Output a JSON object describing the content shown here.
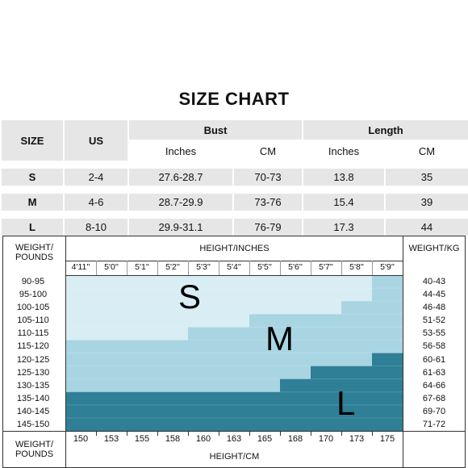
{
  "title": "SIZE CHART",
  "size_table": {
    "headers": {
      "size": "SIZE",
      "us": "US",
      "bust": "Bust",
      "length": "Length"
    },
    "subheaders": [
      "Inches",
      "CM",
      "Inches",
      "CM"
    ],
    "rows": [
      {
        "size": "S",
        "us": "2-4",
        "bust_in": "27.6-28.7",
        "bust_cm": "70-73",
        "len_in": "13.8",
        "len_cm": "35"
      },
      {
        "size": "M",
        "us": "4-6",
        "bust_in": "28.7-29.9",
        "bust_cm": "73-76",
        "len_in": "15.4",
        "len_cm": "39"
      },
      {
        "size": "L",
        "us": "8-10",
        "bust_in": "29.9-31.1",
        "bust_cm": "76-79",
        "len_in": "17.3",
        "len_cm": "44"
      }
    ]
  },
  "grid": {
    "weight_pounds_label": "WEIGHT/ POUNDS",
    "height_inches_label": "HEIGHT/INCHES",
    "weight_kg_label": "WEIGHT/KG",
    "height_cm_label": "HEIGHT/CM",
    "heights_in": [
      "4'11''",
      "5'0''",
      "5'1''",
      "5'2''",
      "5'3''",
      "5'4''",
      "5'5''",
      "5'6''",
      "5'7''",
      "5'8''",
      "5'9''"
    ],
    "heights_cm": [
      "150",
      "153",
      "155",
      "158",
      "160",
      "163",
      "165",
      "168",
      "170",
      "173",
      "175"
    ],
    "weights_lb": [
      "90-95",
      "95-100",
      "100-105",
      "105-110",
      "110-115",
      "115-120",
      "120-125",
      "125-130",
      "130-135",
      "135-140",
      "140-145",
      "145-150"
    ],
    "weights_kg": [
      "40-43",
      "44-45",
      "46-48",
      "51-52",
      "53-55",
      "56-58",
      "60-61",
      "61-63",
      "64-66",
      "67-68",
      "69-70",
      "71-72"
    ],
    "zone_labels": {
      "s": "S",
      "m": "M",
      "l": "L"
    },
    "colors": {
      "s": "#d8eef4",
      "m": "#a9d5e2",
      "l": "#2f7f96"
    }
  }
}
